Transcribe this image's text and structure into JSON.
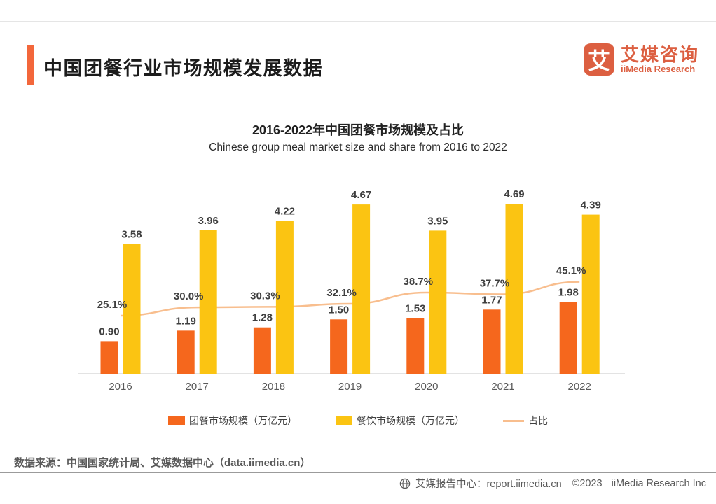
{
  "header": {
    "title": "中国团餐行业市场规模发展数据",
    "logo": {
      "badge_char": "艾",
      "name_cn": "艾媒咨询",
      "name_en": "iiMedia Research"
    }
  },
  "chart_data": {
    "type": "bar+line",
    "title": "2016-2022年中国团餐市场规模及占比",
    "subtitle": "Chinese group meal market size and share from 2016 to 2022",
    "categories": [
      "2016",
      "2017",
      "2018",
      "2019",
      "2020",
      "2021",
      "2022"
    ],
    "series": [
      {
        "name": "团餐市场规模（万亿元）",
        "type": "bar",
        "color": "#F5671D",
        "values": [
          0.9,
          1.19,
          1.28,
          1.5,
          1.53,
          1.77,
          1.98
        ]
      },
      {
        "name": "餐饮市场规模（万亿元）",
        "type": "bar",
        "color": "#FBC412",
        "values": [
          3.58,
          3.96,
          4.22,
          4.67,
          3.95,
          4.69,
          4.39
        ]
      },
      {
        "name": "占比",
        "type": "line",
        "unit": "%",
        "color": "#F8BE8E",
        "values": [
          25.1,
          30.0,
          30.3,
          32.1,
          38.7,
          37.7,
          45.1
        ]
      }
    ],
    "ylim": [
      0,
      5.5
    ],
    "grid": false,
    "legend_position": "bottom",
    "axis_color": "#DADADA"
  },
  "footnote": {
    "source": "数据来源：中国国家统计局、艾媒数据中心（data.iimedia.cn）"
  },
  "footer": {
    "icon": "globe-icon",
    "report_center": "艾媒报告中心：report.iimedia.cn",
    "copyright": "©2023",
    "company": "iiMedia Research Inc"
  }
}
